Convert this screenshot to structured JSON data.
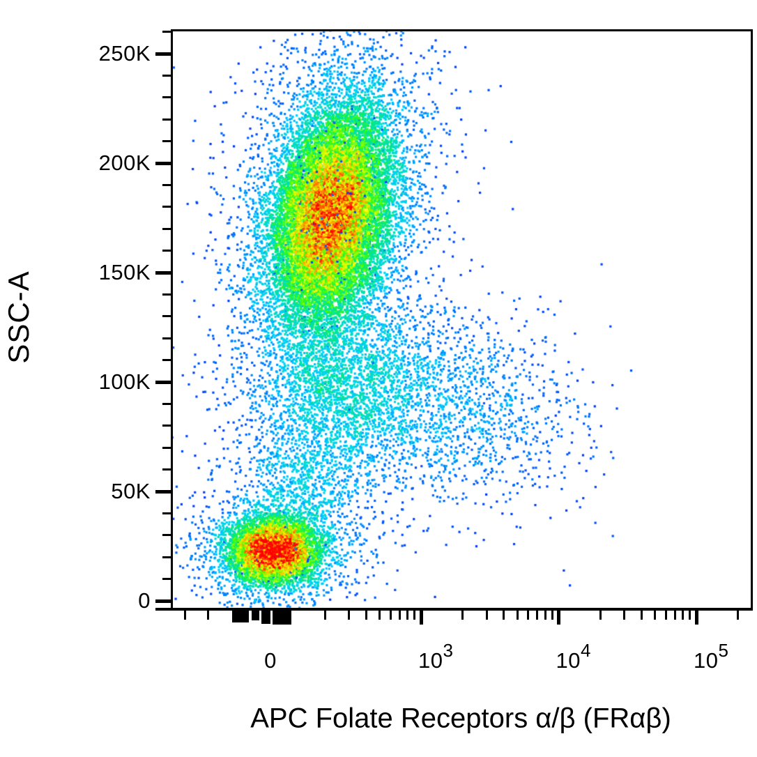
{
  "figure": {
    "kind": "flow-cytometry pseudocolor dot plot",
    "background_color": "#ffffff",
    "frame_color": "#000000"
  },
  "chart_data": {
    "type": "scatter",
    "subtype": "pseudocolor-density-dot-plot",
    "title": "",
    "x_axis": {
      "label": "APC Folate Receptors α/β (FRαβ)",
      "scale": "biexponential",
      "range_hint": [
        -1000,
        262144
      ],
      "ticks": [
        {
          "text": "0"
        },
        {
          "base": "10",
          "exp": "3"
        },
        {
          "base": "10",
          "exp": "4"
        },
        {
          "base": "10",
          "exp": "5"
        }
      ]
    },
    "y_axis": {
      "label": "SSC-A",
      "scale": "linear",
      "range": [
        0,
        262144
      ],
      "major_tick_step": 50000,
      "minor_tick_step": 10000,
      "ticks": [
        {
          "label": "0",
          "value": 0
        },
        {
          "label": "50K",
          "value": 50000
        },
        {
          "label": "100K",
          "value": 100000
        },
        {
          "label": "150K",
          "value": 150000
        },
        {
          "label": "200K",
          "value": 200000
        },
        {
          "label": "250K",
          "value": 250000
        }
      ]
    },
    "colormap": {
      "name": "jet-density",
      "meaning": "blue = low local event density, red = high local event density",
      "stops": [
        [
          0.0,
          0,
          16,
          248
        ],
        [
          0.25,
          0,
          208,
          255
        ],
        [
          0.42,
          0,
          232,
          128
        ],
        [
          0.55,
          64,
          255,
          0
        ],
        [
          0.7,
          255,
          255,
          0
        ],
        [
          0.84,
          255,
          144,
          0
        ],
        [
          1.0,
          255,
          0,
          0
        ]
      ]
    },
    "populations": [
      {
        "name": "high-SSC granulocyte-like cluster (FR dim)",
        "approx_x_median": 300,
        "approx_y_median_ssc": 171000,
        "fraction_x": 0.2754,
        "fraction_y": 0.3217,
        "sigma_x": 0.0503,
        "sigma_y": 0.0912,
        "rho": -0.27,
        "n": 18000,
        "halo": {
          "fraction": 0.25,
          "scale": 1.7
        }
      },
      {
        "name": "low-SSC lymphocyte-like cluster (FR negative)",
        "approx_x_median": 10,
        "approx_y_median_ssc": 22500,
        "fraction_x": 0.1772,
        "fraction_y": 0.8992,
        "sigma_x": 0.0371,
        "sigma_y": 0.0264,
        "rho": 0,
        "n": 6500,
        "halo": {
          "fraction": 0.25,
          "scale": 1.8
        }
      },
      {
        "name": "mid-SSC drift below main cluster",
        "approx_x_median": 350,
        "approx_y_median_ssc": 95000,
        "fraction_x": 0.2934,
        "fraction_y": 0.6279,
        "sigma_x": 0.0743,
        "sigma_y": 0.0696,
        "rho": 0,
        "n": 2000,
        "halo": {
          "fraction": 0.2,
          "scale": 1.5
        }
      },
      {
        "name": "connector scatter above lymphocytes",
        "approx_x_median": 120,
        "approx_y_median_ssc": 54000,
        "fraction_x": 0.2311,
        "fraction_y": 0.7803,
        "sigma_x": 0.0599,
        "sigma_y": 0.0552,
        "rho": 0,
        "n": 800,
        "halo": {
          "fraction": 0.2,
          "scale": 1.5
        }
      },
      {
        "name": "FR-positive smear",
        "approx_x_median": 1100,
        "approx_y_median_ssc": 95000,
        "fraction_x": 0.4311,
        "fraction_y": 0.6279,
        "sigma_x": 0.0862,
        "sigma_y": 0.0744,
        "rho": 0,
        "n": 1100,
        "halo": {
          "fraction": 0.2,
          "scale": 1.5
        }
      },
      {
        "name": "FR-bright smear tail",
        "approx_x_median": 3800,
        "approx_y_median_ssc": 84000,
        "fraction_x": 0.5629,
        "fraction_y": 0.6699,
        "sigma_x": 0.0743,
        "sigma_y": 0.0672,
        "rho": 0,
        "n": 430,
        "halo": {
          "fraction": 0.25,
          "scale": 1.6
        }
      },
      {
        "name": "sparse outliers left flank",
        "shape": "uniform",
        "region": {
          "x0": 0.07,
          "x1": 0.3,
          "y0": 0.3,
          "y1": 0.88
        },
        "n": 40
      },
      {
        "name": "sparse outliers right wedge",
        "shape": "uniform",
        "region": {
          "x0": 0.3,
          "x1": 0.74,
          "y0": 0.47,
          "y1": 0.9
        },
        "n": 90
      }
    ]
  }
}
